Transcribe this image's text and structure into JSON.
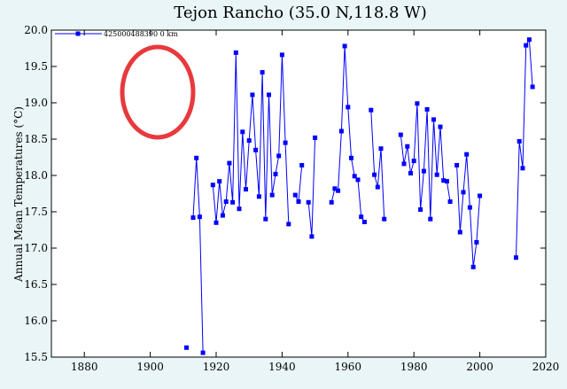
{
  "chart_data": {
    "type": "line",
    "title": "Tejon Rancho (35.0 N,118.8 W)",
    "xlabel": "",
    "ylabel": "Annual Mean Temperatures (°C)",
    "xlim": [
      1870,
      2020
    ],
    "ylim": [
      15.5,
      20.0
    ],
    "xticks": [
      1880,
      1900,
      1920,
      1940,
      1960,
      1980,
      2000,
      2020
    ],
    "yticks": [
      15.5,
      16.0,
      16.5,
      17.0,
      17.5,
      18.0,
      18.5,
      19.0,
      19.5,
      20.0
    ],
    "ytick_labels": [
      "15.5",
      "16.0",
      "16.5",
      "17.0",
      "17.5",
      "18.0",
      "18.5",
      "19.0",
      "19.5",
      "20.0"
    ],
    "grid": false,
    "legend_position": "top-left",
    "series": [
      {
        "name": "425000488390  0 km",
        "color": "#0000ff",
        "segments": [
          [
            [
              1911,
              15.63
            ]
          ],
          [
            [
              1913,
              17.42
            ],
            [
              1914,
              18.24
            ],
            [
              1915,
              17.43
            ],
            [
              1916,
              15.56
            ]
          ],
          [
            [
              1919,
              17.87
            ],
            [
              1920,
              17.35
            ],
            [
              1921,
              17.92
            ],
            [
              1922,
              17.45
            ],
            [
              1923,
              17.64
            ],
            [
              1924,
              18.17
            ],
            [
              1925,
              17.63
            ],
            [
              1926,
              19.69
            ],
            [
              1927,
              17.54
            ],
            [
              1928,
              18.6
            ],
            [
              1929,
              17.81
            ],
            [
              1930,
              18.48
            ],
            [
              1931,
              19.11
            ],
            [
              1932,
              18.35
            ],
            [
              1933,
              17.71
            ],
            [
              1934,
              19.42
            ],
            [
              1935,
              17.4
            ],
            [
              1936,
              19.11
            ],
            [
              1937,
              17.73
            ],
            [
              1938,
              18.02
            ],
            [
              1939,
              18.27
            ],
            [
              1940,
              19.66
            ],
            [
              1941,
              18.45
            ],
            [
              1942,
              17.33
            ]
          ],
          [
            [
              1944,
              17.73
            ],
            [
              1945,
              17.64
            ],
            [
              1946,
              18.14
            ]
          ],
          [
            [
              1948,
              17.63
            ],
            [
              1949,
              17.16
            ],
            [
              1950,
              18.52
            ]
          ],
          [
            [
              1955,
              17.63
            ],
            [
              1956,
              17.82
            ],
            [
              1957,
              17.79
            ],
            [
              1958,
              18.61
            ],
            [
              1959,
              19.78
            ],
            [
              1960,
              18.94
            ],
            [
              1961,
              18.24
            ],
            [
              1962,
              17.99
            ],
            [
              1963,
              17.94
            ],
            [
              1964,
              17.43
            ],
            [
              1965,
              17.36
            ]
          ],
          [
            [
              1967,
              18.9
            ],
            [
              1968,
              18.01
            ],
            [
              1969,
              17.84
            ],
            [
              1970,
              18.37
            ],
            [
              1971,
              17.4
            ]
          ],
          [
            [
              1976,
              18.56
            ],
            [
              1977,
              18.16
            ],
            [
              1978,
              18.4
            ],
            [
              1979,
              18.03
            ],
            [
              1980,
              18.2
            ],
            [
              1981,
              18.99
            ],
            [
              1982,
              17.53
            ],
            [
              1983,
              18.06
            ],
            [
              1984,
              18.91
            ],
            [
              1985,
              17.4
            ],
            [
              1986,
              18.77
            ],
            [
              1987,
              18.01
            ],
            [
              1988,
              18.67
            ],
            [
              1989,
              17.93
            ],
            [
              1990,
              17.92
            ],
            [
              1991,
              17.64
            ]
          ],
          [
            [
              1993,
              18.14
            ],
            [
              1994,
              17.22
            ],
            [
              1995,
              17.77
            ],
            [
              1996,
              18.29
            ],
            [
              1997,
              17.56
            ],
            [
              1998,
              16.74
            ],
            [
              1999,
              17.08
            ],
            [
              2000,
              17.72
            ]
          ],
          [
            [
              2011,
              16.87
            ],
            [
              2012,
              18.47
            ],
            [
              2013,
              18.1
            ],
            [
              2014,
              19.79
            ],
            [
              2015,
              19.87
            ],
            [
              2016,
              19.22
            ]
          ]
        ]
      }
    ]
  },
  "annotation": {
    "shape": "ellipse",
    "color": "#e8393c"
  }
}
